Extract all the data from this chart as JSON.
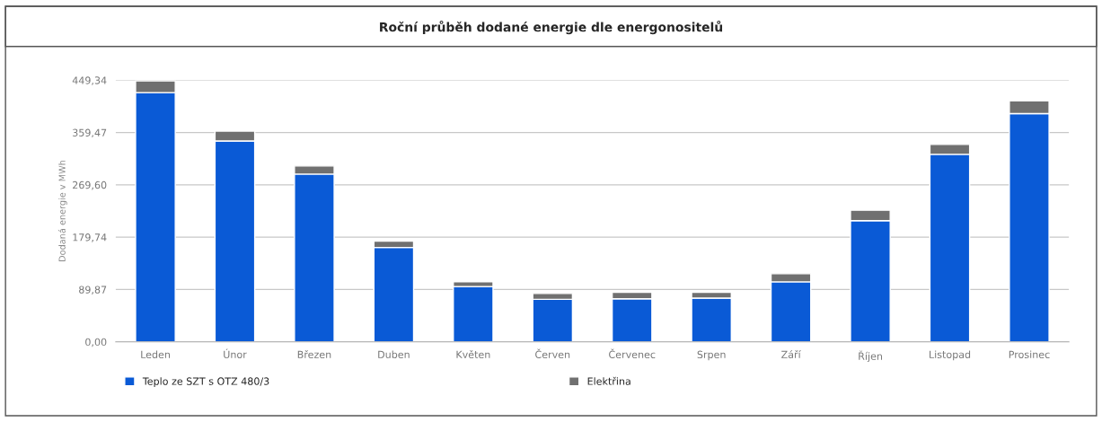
{
  "chart_data": {
    "type": "bar",
    "title": "Roční průběh dodané energie dle energonositelů",
    "ylabel": "Dodaná energie v MWh",
    "categories": [
      "Leden",
      "Únor",
      "Březen",
      "Duben",
      "Květen",
      "Červen",
      "Červenec",
      "Srpen",
      "Září",
      "Říjen",
      "Listopad",
      "Prosinec"
    ],
    "series": [
      {
        "name": "Teplo ze SZT s OTZ 480/3",
        "color": "#0a5ad6",
        "values": [
          428,
          345,
          288,
          162,
          95,
          73,
          74,
          75,
          103,
          208,
          322,
          392
        ]
      },
      {
        "name": "Elektřina",
        "color": "#707070",
        "values": [
          20,
          17,
          14,
          11,
          8,
          10,
          11,
          10,
          14,
          18,
          17,
          22
        ]
      }
    ],
    "stacked": true,
    "ylim": [
      0,
      449.34
    ],
    "yticks": [
      {
        "value": 0,
        "label": "0,00"
      },
      {
        "value": 89.87,
        "label": "89,87"
      },
      {
        "value": 179.74,
        "label": "179,74"
      },
      {
        "value": 269.6,
        "label": "269,60"
      },
      {
        "value": 359.47,
        "label": "359,47"
      },
      {
        "value": 449.34,
        "label": "449,34"
      }
    ],
    "grid": "y",
    "legend": "bottom"
  }
}
